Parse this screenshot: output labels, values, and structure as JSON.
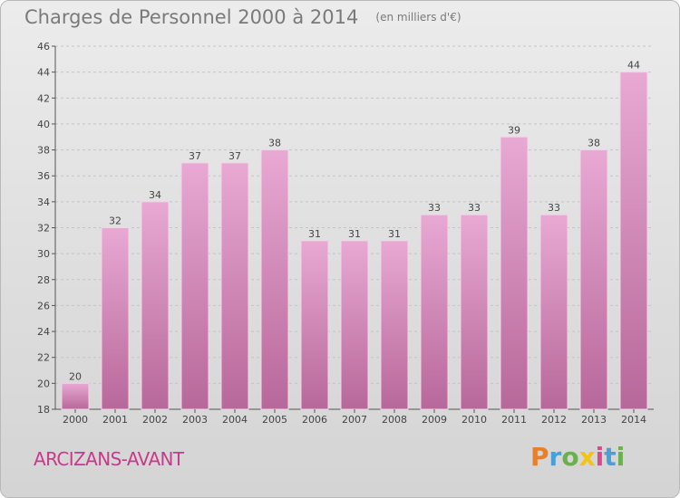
{
  "chart_data": {
    "type": "bar",
    "title": "Charges de Personnel 2000 à 2014",
    "subtitle": "(en milliers d'€)",
    "categories": [
      "2000",
      "2001",
      "2002",
      "2003",
      "2004",
      "2005",
      "2006",
      "2007",
      "2008",
      "2009",
      "2010",
      "2011",
      "2012",
      "2013",
      "2014"
    ],
    "values": [
      20,
      32,
      34,
      37,
      37,
      38,
      31,
      31,
      31,
      33,
      33,
      39,
      33,
      38,
      44
    ],
    "ylim": [
      18,
      46
    ],
    "yticks": [
      18,
      20,
      22,
      24,
      26,
      28,
      30,
      32,
      34,
      36,
      38,
      40,
      42,
      44,
      46
    ],
    "grid": true,
    "bar_color": "#d98fbf"
  },
  "location_label": "ARCIZANS-AVANT",
  "logo": {
    "letters": [
      "P",
      "r",
      "o",
      "x",
      "i",
      "t",
      "i"
    ],
    "colors": [
      "#e8802a",
      "#4a9fd8",
      "#6ab04c",
      "#f0c419",
      "#d94a8c",
      "#4a9fd8",
      "#6ab04c"
    ]
  }
}
